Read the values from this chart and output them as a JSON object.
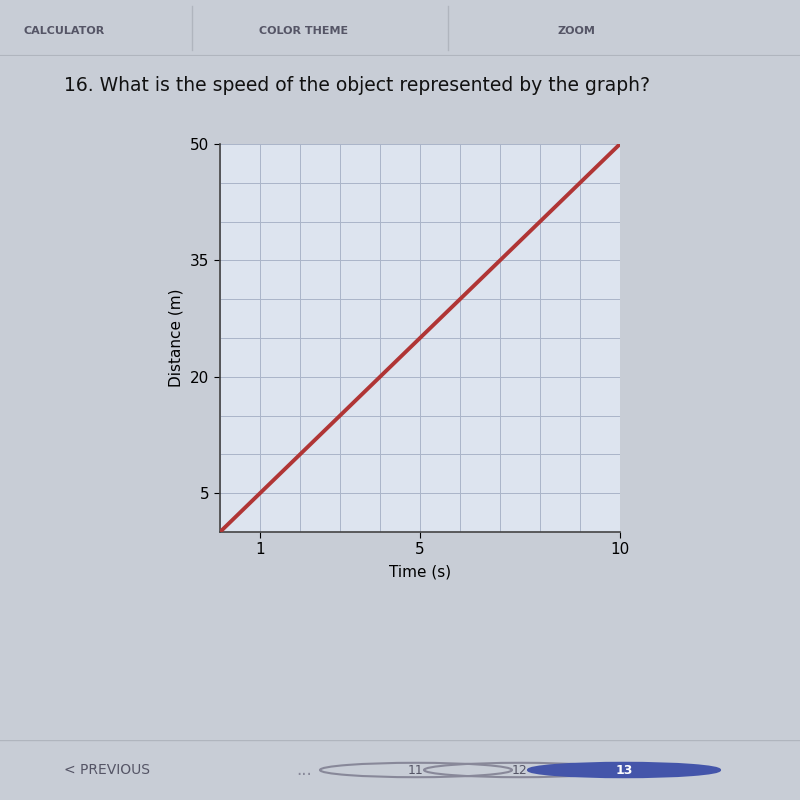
{
  "title": "16. What is the speed of the object represented by the graph?",
  "xlabel": "Time (s)",
  "ylabel": "Distance (m)",
  "xlim": [
    0,
    10
  ],
  "ylim": [
    0,
    50
  ],
  "xticks": [
    1,
    5,
    10
  ],
  "yticks": [
    5,
    20,
    35,
    50
  ],
  "line_x": [
    0,
    10
  ],
  "line_y": [
    0,
    50
  ],
  "line_color": "#b03535",
  "line_width": 2.8,
  "grid_color": "#aab4c8",
  "grid_linewidth": 0.7,
  "plot_bg_color": "#dde4ef",
  "figure_bg": "#c8cdd6",
  "page_bg": "#c8cdd6",
  "toolbar_bg": "#d0d5de",
  "toolbar_border": "#b0b5be",
  "title_fontsize": 13.5,
  "label_fontsize": 11,
  "tick_fontsize": 11,
  "toolbar_text": [
    "CALCULATOR",
    "COLOR THEME",
    "ZOOM"
  ],
  "nav_text": "< PREVIOUS",
  "nav_dots": "...",
  "nav_items": [
    "11",
    "12",
    "13"
  ],
  "spine_color": "#444444"
}
